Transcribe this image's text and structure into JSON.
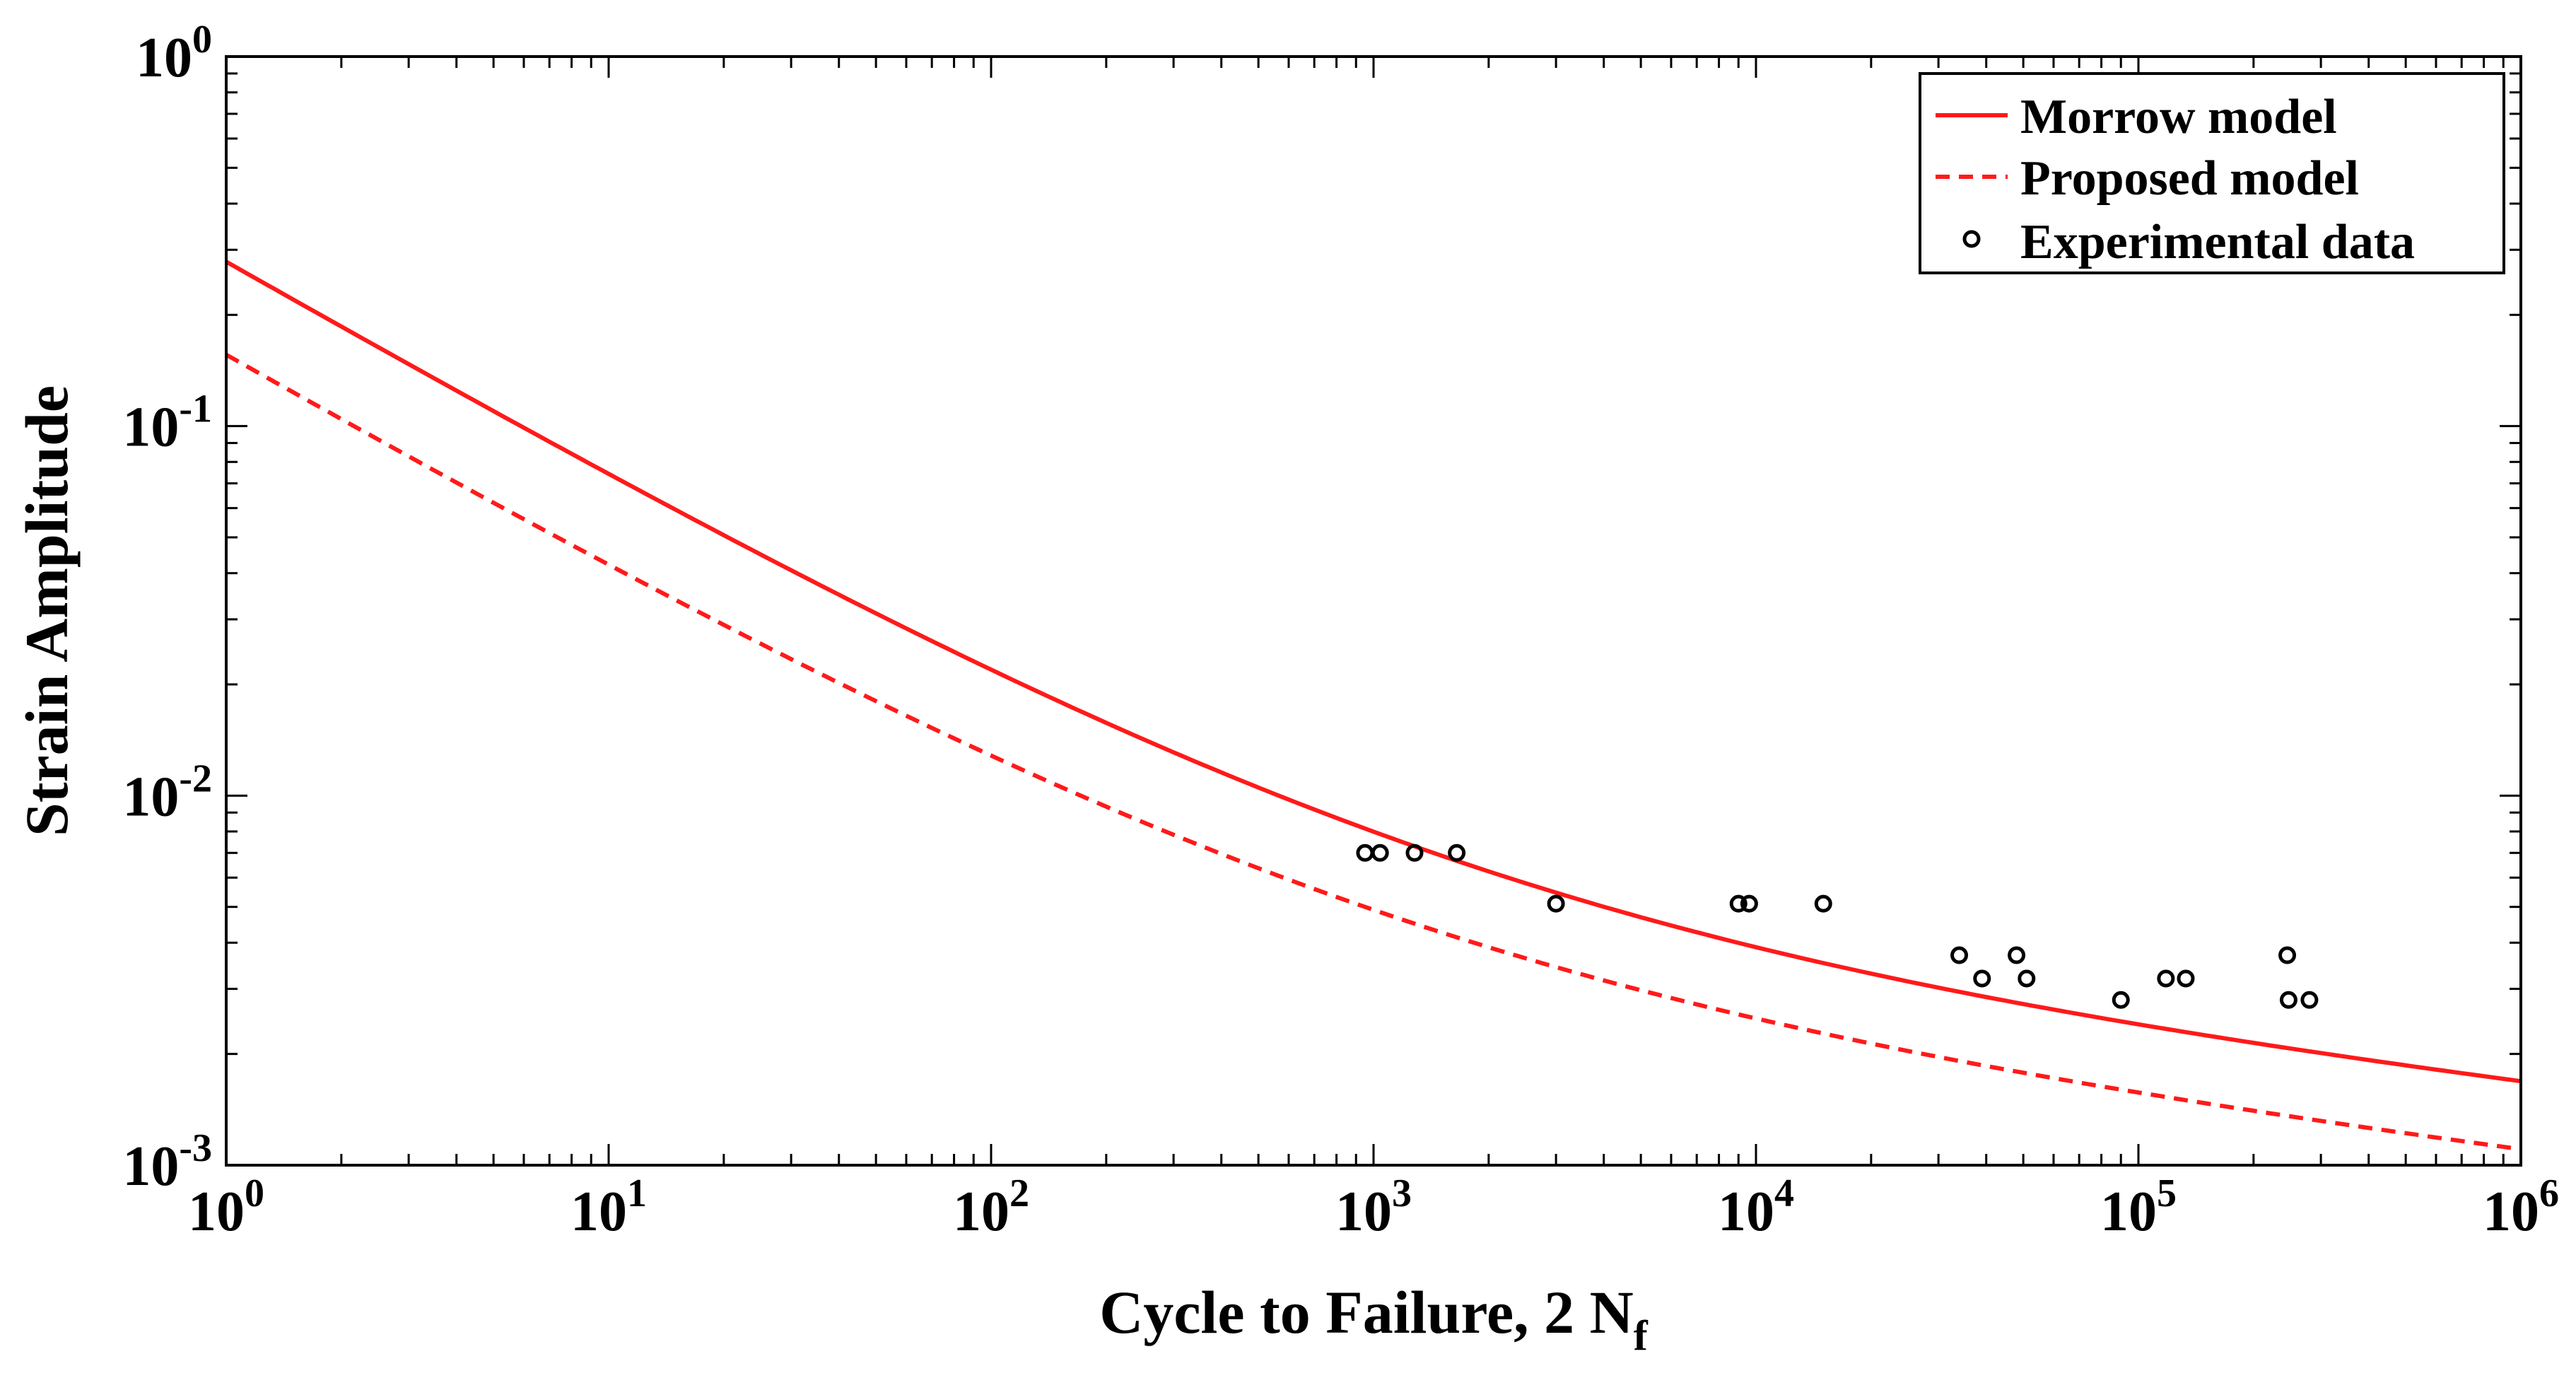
{
  "chart_data": {
    "type": "line",
    "title": "",
    "xlabel": "Cycle to Failure, 2 N",
    "xlabel_sub": "f",
    "ylabel": "Strain Amplitude",
    "x_scale": "log",
    "y_scale": "log",
    "xlim": [
      1,
      1000000
    ],
    "ylim": [
      0.001,
      1
    ],
    "grid": false,
    "legend_position": "top-right",
    "x_ticks": [
      {
        "base": "10",
        "exp": "0",
        "value": 1
      },
      {
        "base": "10",
        "exp": "1",
        "value": 10
      },
      {
        "base": "10",
        "exp": "2",
        "value": 100
      },
      {
        "base": "10",
        "exp": "3",
        "value": 1000
      },
      {
        "base": "10",
        "exp": "4",
        "value": 10000
      },
      {
        "base": "10",
        "exp": "5",
        "value": 100000
      },
      {
        "base": "10",
        "exp": "6",
        "value": 1000000
      }
    ],
    "y_ticks": [
      {
        "base": "10",
        "exp": "-3",
        "value": 0.001
      },
      {
        "base": "10",
        "exp": "-2",
        "value": 0.01
      },
      {
        "base": "10",
        "exp": "-1",
        "value": 0.1
      },
      {
        "base": "10",
        "exp": "0",
        "value": 1
      }
    ],
    "series": [
      {
        "name": "Morrow model",
        "style": "solid",
        "color": "#ff1a1a",
        "model": {
          "A": 0.0085,
          "b": -0.12,
          "B": 0.27,
          "c": -0.6
        }
      },
      {
        "name": "Proposed model",
        "style": "dashed",
        "color": "#ff1a1a",
        "model": {
          "A": 0.006,
          "b": -0.125,
          "B": 0.15,
          "c": -0.6
        }
      },
      {
        "name": "Experimental data",
        "style": "markers",
        "color": "#000000",
        "x": [
          950,
          1040,
          1280,
          1650,
          3000,
          9000,
          9600,
          15000,
          34000,
          39000,
          48000,
          51000,
          90000,
          118000,
          133000,
          245000,
          247000,
          280000
        ],
        "y": [
          0.007,
          0.007,
          0.007,
          0.007,
          0.0051,
          0.0051,
          0.0051,
          0.0051,
          0.0037,
          0.0032,
          0.0037,
          0.0032,
          0.0028,
          0.0032,
          0.0032,
          0.0037,
          0.0028,
          0.0028
        ]
      }
    ]
  }
}
